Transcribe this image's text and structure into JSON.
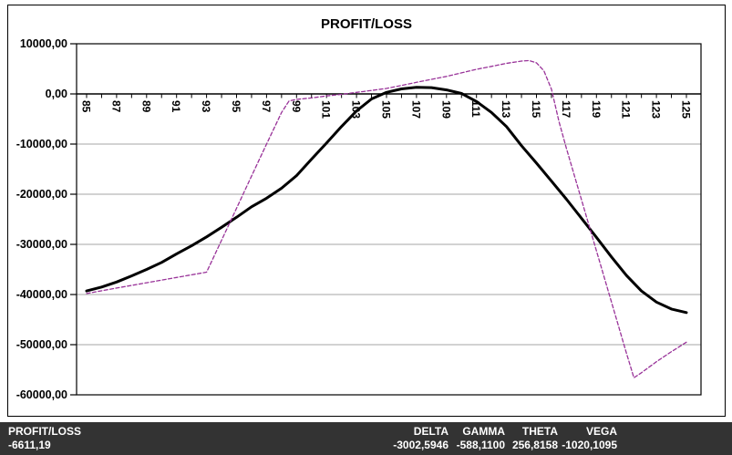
{
  "window": {
    "title": "PROFIT/LOSS"
  },
  "y_axis": {
    "labels": [
      "10000,00",
      "0,00",
      "-10000,00",
      "-20000,00",
      "-30000,00",
      "-40000,00",
      "-50000,00",
      "-60000,00"
    ]
  },
  "x_axis": {
    "labels": [
      "85",
      "87",
      "89",
      "91",
      "93",
      "95",
      "97",
      "99",
      "101",
      "103",
      "105",
      "107",
      "109",
      "111",
      "113",
      "115",
      "117",
      "119",
      "121",
      "123",
      "125"
    ]
  },
  "chart_data": {
    "type": "line",
    "title": "PROFIT/LOSS",
    "xlabel": "",
    "ylabel": "",
    "xlim": [
      85,
      125
    ],
    "ylim": [
      -60000,
      10000
    ],
    "x_tick_step": 1,
    "x_label_step": 2,
    "y_tick_step": 10000,
    "grid": "horizontal",
    "grid_color": "#a6a6a6",
    "axis_color": "#000000",
    "legend": "none",
    "series": [
      {
        "name": "current-profit-loss",
        "style": "solid",
        "color": "#000000",
        "width": 3,
        "points": [
          [
            85,
            -39300
          ],
          [
            86,
            -38500
          ],
          [
            87,
            -37500
          ],
          [
            88,
            -36300
          ],
          [
            89,
            -35000
          ],
          [
            90,
            -33600
          ],
          [
            91,
            -31900
          ],
          [
            92,
            -30300
          ],
          [
            93,
            -28500
          ],
          [
            94,
            -26600
          ],
          [
            95,
            -24600
          ],
          [
            96,
            -22500
          ],
          [
            97,
            -20800
          ],
          [
            98,
            -18800
          ],
          [
            99,
            -16300
          ],
          [
            100,
            -13000
          ],
          [
            101,
            -9800
          ],
          [
            102,
            -6500
          ],
          [
            103,
            -3400
          ],
          [
            104,
            -1000
          ],
          [
            105,
            300
          ],
          [
            106,
            1000
          ],
          [
            107,
            1300
          ],
          [
            108,
            1250
          ],
          [
            109,
            800
          ],
          [
            110,
            100
          ],
          [
            111,
            -1500
          ],
          [
            112,
            -3700
          ],
          [
            113,
            -6500
          ],
          [
            114,
            -10300
          ],
          [
            115,
            -13800
          ],
          [
            116,
            -17400
          ],
          [
            117,
            -21000
          ],
          [
            118,
            -24800
          ],
          [
            119,
            -28600
          ],
          [
            120,
            -32500
          ],
          [
            121,
            -36200
          ],
          [
            122,
            -39300
          ],
          [
            123,
            -41500
          ],
          [
            124,
            -42900
          ],
          [
            125,
            -43600
          ]
        ]
      },
      {
        "name": "expiration-profit-loss",
        "style": "dashed",
        "color": "#993399",
        "width": 1.3,
        "points": [
          [
            85,
            -39800
          ],
          [
            87,
            -38700
          ],
          [
            89,
            -37650
          ],
          [
            91,
            -36600
          ],
          [
            93,
            -35550
          ],
          [
            94,
            -29200
          ],
          [
            95,
            -22800
          ],
          [
            96,
            -16400
          ],
          [
            97,
            -10000
          ],
          [
            98,
            -3700
          ],
          [
            98.5,
            -1400
          ],
          [
            99,
            -1100
          ],
          [
            100,
            -800
          ],
          [
            101,
            -400
          ],
          [
            102,
            -100
          ],
          [
            103,
            300
          ],
          [
            104,
            700
          ],
          [
            105,
            1100
          ],
          [
            106,
            1700
          ],
          [
            107,
            2300
          ],
          [
            108,
            2900
          ],
          [
            109,
            3500
          ],
          [
            110,
            4200
          ],
          [
            111,
            4900
          ],
          [
            112,
            5500
          ],
          [
            113,
            6100
          ],
          [
            114,
            6550
          ],
          [
            114.5,
            6650
          ],
          [
            115,
            6200
          ],
          [
            115.5,
            4600
          ],
          [
            116,
            900
          ],
          [
            116.5,
            -5500
          ],
          [
            117,
            -10900
          ],
          [
            118,
            -21100
          ],
          [
            119,
            -31300
          ],
          [
            120,
            -41500
          ],
          [
            121,
            -51700
          ],
          [
            121.5,
            -56600
          ],
          [
            122,
            -55600
          ],
          [
            123,
            -53400
          ],
          [
            124,
            -51400
          ],
          [
            125,
            -49500
          ]
        ]
      }
    ]
  },
  "status_bar": {
    "bg_color": "#333333",
    "text_color": "#ffffff",
    "left": {
      "label": "PROFIT/LOSS",
      "value": "-6611,19"
    },
    "greeks": [
      {
        "label": "DELTA",
        "value": "-3002,5946"
      },
      {
        "label": "GAMMA",
        "value": "-588,1100"
      },
      {
        "label": "THETA",
        "value": "256,8158"
      },
      {
        "label": "VEGA",
        "value": "-1020,1095"
      }
    ]
  }
}
